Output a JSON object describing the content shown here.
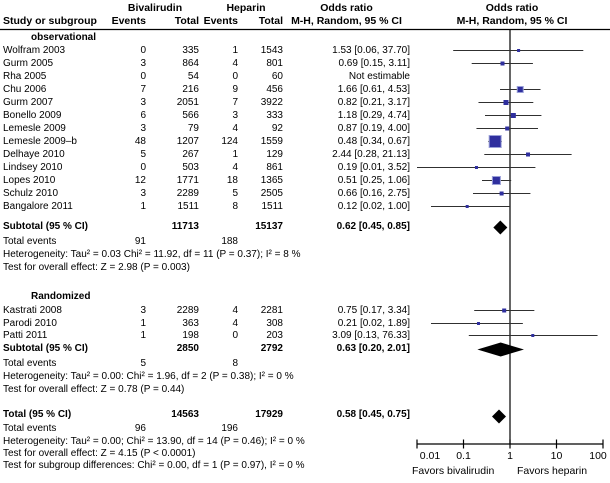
{
  "header": {
    "study_col": "Study or subgroup",
    "group1": "Bivalirudin",
    "group2": "Heparin",
    "events_col": "Events",
    "total_col": "Total",
    "or_title": "Odds ratio",
    "or_subtitle": "M-H, Random, 95 % CI"
  },
  "chart_data": {
    "type": "forest",
    "effect_measure": "Odds ratio, M-H, Random, 95 % CI",
    "xscale": "log",
    "xlim": [
      0.01,
      100
    ],
    "xticks": [
      "0.01",
      "0.1",
      "1",
      "10",
      "100"
    ],
    "favors_left": "Favors bivalirudin",
    "favors_right": "Favors heparin",
    "groups": [
      {
        "name": "observational",
        "studies": [
          {
            "study": "Wolfram 2003",
            "events1": "0",
            "total1": "335",
            "events2": "1",
            "total2": "1543",
            "or_text": "1.53 [0.06, 37.70]",
            "or": 1.53,
            "lo": 0.06,
            "hi": 37.7,
            "sq": 3
          },
          {
            "study": "Gurm 2005",
            "events1": "3",
            "total1": "864",
            "events2": "4",
            "total2": "801",
            "or_text": "0.69  [0.15, 3.11]",
            "or": 0.69,
            "lo": 0.15,
            "hi": 3.11,
            "sq": 4
          },
          {
            "study": "Rha 2005",
            "events1": "0",
            "total1": "54",
            "events2": "0",
            "total2": "60",
            "or_text": "Not estimable",
            "or": null,
            "lo": null,
            "hi": null,
            "sq": 0
          },
          {
            "study": "Chu 2006",
            "events1": "7",
            "total1": "216",
            "events2": "9",
            "total2": "456",
            "or_text": "1.66  [0.61, 4.53]",
            "or": 1.66,
            "lo": 0.61,
            "hi": 4.53,
            "sq": 6
          },
          {
            "study": "Gurm 2007",
            "events1": "3",
            "total1": "2051",
            "events2": "7",
            "total2": "3922",
            "or_text": "0.82  [0.21, 3.17]",
            "or": 0.82,
            "lo": 0.21,
            "hi": 3.17,
            "sq": 5
          },
          {
            "study": "Bonello 2009",
            "events1": "6",
            "total1": "566",
            "events2": "3",
            "total2": "333",
            "or_text": "1.18 [0.29, 4.74]",
            "or": 1.18,
            "lo": 0.29,
            "hi": 4.74,
            "sq": 5
          },
          {
            "study": "Lemesle 2009",
            "events1": "3",
            "total1": "79",
            "events2": "4",
            "total2": "92",
            "or_text": "0.87 [0.19, 4.00]",
            "or": 0.87,
            "lo": 0.19,
            "hi": 4.0,
            "sq": 4
          },
          {
            "study": "Lemesle 2009–b",
            "events1": "48",
            "total1": "1207",
            "events2": "124",
            "total2": "1559",
            "or_text": "0.48 [0.34, 0.67]",
            "or": 0.48,
            "lo": 0.34,
            "hi": 0.67,
            "sq": 12
          },
          {
            "study": "Delhaye 2010",
            "events1": "5",
            "total1": "267",
            "events2": "1",
            "total2": "129",
            "or_text": "2.44 [0.28, 21.13]",
            "or": 2.44,
            "lo": 0.28,
            "hi": 21.13,
            "sq": 4
          },
          {
            "study": "Lindsey 2010",
            "events1": "0",
            "total1": "503",
            "events2": "4",
            "total2": "861",
            "or_text": "0.19 [0.01, 3.52]",
            "or": 0.19,
            "lo": 0.01,
            "hi": 3.52,
            "sq": 3
          },
          {
            "study": "Lopes 2010",
            "events1": "12",
            "total1": "1771",
            "events2": "18",
            "total2": "1365",
            "or_text": "0.51 [0.25, 1.06]",
            "or": 0.51,
            "lo": 0.25,
            "hi": 1.06,
            "sq": 8
          },
          {
            "study": "Schulz 2010",
            "events1": "3",
            "total1": "2289",
            "events2": "5",
            "total2": "2505",
            "or_text": "0.66 [0.16, 2.75]",
            "or": 0.66,
            "lo": 0.16,
            "hi": 2.75,
            "sq": 4
          },
          {
            "study": "Bangalore 2011",
            "events1": "1",
            "total1": "1511",
            "events2": "8",
            "total2": "1511",
            "or_text": "0.12 [0.02, 1.00]",
            "or": 0.12,
            "lo": 0.02,
            "hi": 1.0,
            "sq": 3
          }
        ],
        "subtotal": {
          "label": "Subtotal (95 % CI)",
          "total1": "11713",
          "total2": "15137",
          "or_text": "0.62 [0.45, 0.85]",
          "or": 0.62,
          "lo": 0.45,
          "hi": 0.85
        },
        "total_events_label": "Total events",
        "total_events1": "91",
        "total_events2": "188",
        "footnotes": [
          "Heterogeneity: Tau² = 0.03 Chi² = 11.92, df = 11 (P = 0.37); I² = 8 %",
          "Test for overall effect: Z = 2.98 (P = 0.003)"
        ]
      },
      {
        "name": "Randomized",
        "studies": [
          {
            "study": "Kastrati 2008",
            "events1": "3",
            "total1": "2289",
            "events2": "4",
            "total2": "2281",
            "or_text": "0.75 [0.17, 3.34]",
            "or": 0.75,
            "lo": 0.17,
            "hi": 3.34,
            "sq": 4
          },
          {
            "study": "Parodi 2010",
            "events1": "1",
            "total1": "363",
            "events2": "4",
            "total2": "308",
            "or_text": "0.21 [0.02, 1.89]",
            "or": 0.21,
            "lo": 0.02,
            "hi": 1.89,
            "sq": 3
          },
          {
            "study": "Patti 2011",
            "events1": "1",
            "total1": "198",
            "events2": "0",
            "total2": "203",
            "or_text": "3.09 [0.13, 76.33]",
            "or": 3.09,
            "lo": 0.13,
            "hi": 76.33,
            "sq": 3
          }
        ],
        "subtotal": {
          "label": "Subtotal (95 % CI)",
          "total1": "2850",
          "total2": "2792",
          "or_text": "0.63 [0.20, 2.01]",
          "or": 0.63,
          "lo": 0.2,
          "hi": 2.01
        },
        "total_events_label": "Total events",
        "total_events1": "5",
        "total_events2": "8",
        "footnotes": [
          "Heterogeneity: Tau² = 0.00: Chi² = 1.96, df = 2 (P = 0.38); I² = 0 %",
          "Test for overall effect: Z = 0.78 (P = 0.44)"
        ]
      }
    ],
    "overall": {
      "label": "Total (95 % CI)",
      "total1": "14563",
      "total2": "17929",
      "or_text": "0.58 [0.45, 0.75]",
      "or": 0.58,
      "lo": 0.45,
      "hi": 0.75,
      "total_events_label": "Total events",
      "total_events1": "96",
      "total_events2": "196",
      "footnotes": [
        "Heterogeneity: Tau² = 0.00; Chi² = 13.90, df = 14 (P = 0.46); I² = 0 %",
        "Test for overall effect: Z = 4.15 (P < 0.0001)",
        "Test for subgroup differences: Chi² = 0.00, df = 1 (P = 0.97), I² = 0 %"
      ]
    }
  },
  "colors": {
    "square": "#2f2f9e",
    "square_border": "#9aa0d8",
    "diamond": "#000000",
    "ci_line": "#303030",
    "axis": "#000000"
  }
}
